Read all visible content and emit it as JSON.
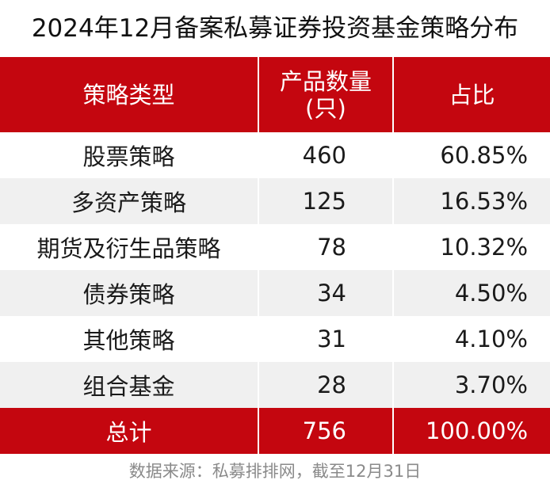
{
  "title": "2024年12月备案私募证券投资基金策略分布",
  "colors": {
    "header_bg": "#c4060f",
    "row_alt_bg": "#f0f0f0",
    "header_text": "#ffffff"
  },
  "chart_data": {
    "type": "table",
    "title": "2024年12月备案私募证券投资基金策略分布",
    "columns": [
      "策略类型",
      "产品数量(只)",
      "占比"
    ],
    "rows": [
      {
        "strategy": "股票策略",
        "count": "460",
        "share": "60.85%"
      },
      {
        "strategy": "多资产策略",
        "count": "125",
        "share": "16.53%"
      },
      {
        "strategy": "期货及衍生品策略",
        "count": "78",
        "share": "10.32%"
      },
      {
        "strategy": "债券策略",
        "count": "34",
        "share": "4.50%"
      },
      {
        "strategy": "其他策略",
        "count": "31",
        "share": "4.10%"
      },
      {
        "strategy": "组合基金",
        "count": "28",
        "share": "3.70%"
      }
    ],
    "total": {
      "label": "总计",
      "count": "756",
      "share": "100.00%"
    }
  },
  "header": {
    "col1": "策略类型",
    "col2_line1": "产品数量",
    "col2_line2": "(只)",
    "col3": "占比"
  },
  "source": "数据来源：私募排排网，截至12月31日"
}
